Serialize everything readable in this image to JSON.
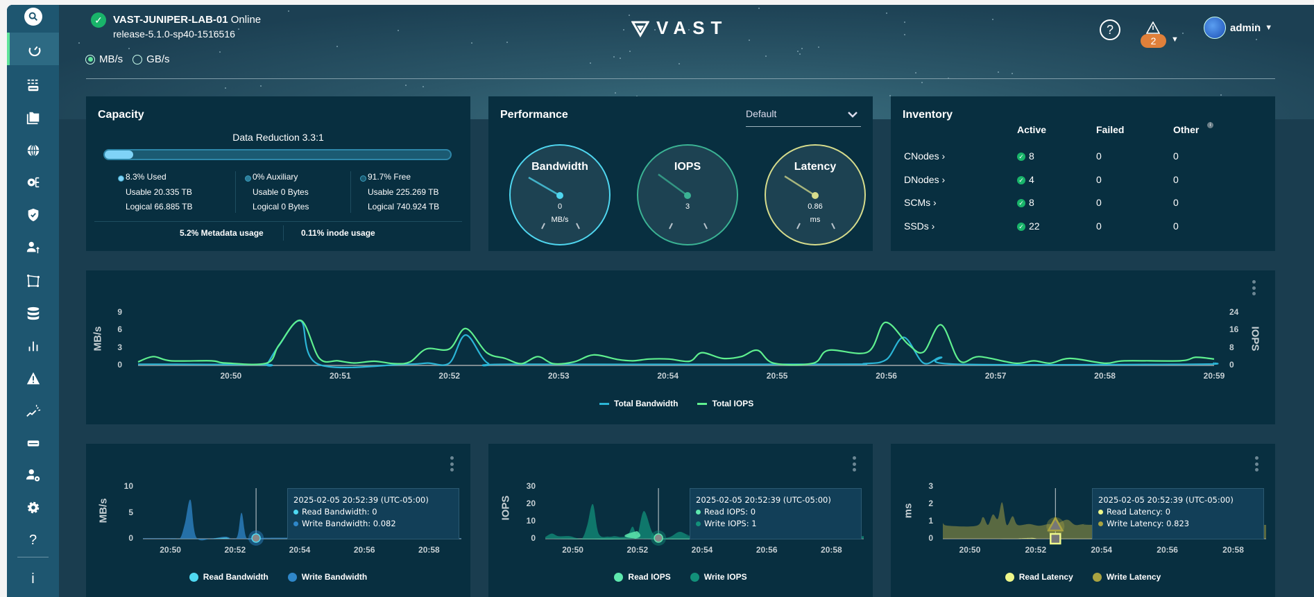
{
  "header": {
    "cluster_name": "VAST-JUNIPER-LAB-01",
    "cluster_status": "Online",
    "release": "release-5.1.0-sp40-1516516",
    "units": [
      {
        "label": "MB/s",
        "selected": true
      },
      {
        "label": "GB/s",
        "selected": false
      }
    ],
    "logo_text": "VAST",
    "alert_count": "2",
    "user": "admin"
  },
  "sidebar": {
    "items": [
      "search-icon",
      "dashboard-icon",
      "infrastructure-icon",
      "folders-icon",
      "network-icon",
      "settings-tree-icon",
      "security-icon",
      "user-access-icon",
      "topology-icon",
      "database-icon",
      "analytics-icon",
      "alerts-icon",
      "trends-icon",
      "hardware-icon",
      "user-settings-icon",
      "gear-icon",
      "help-icon",
      "info-icon"
    ],
    "active": "dashboard-icon",
    "help_glyph": "?",
    "info_glyph": "i"
  },
  "capacity": {
    "title": "Capacity",
    "data_reduction": "Data Reduction 3.3:1",
    "used_fraction": 0.083,
    "columns": [
      {
        "label": "8.3% Used",
        "usable": "Usable 20.335 TB",
        "logical": "Logical 66.885 TB",
        "color": "#7fd3f7"
      },
      {
        "label": "0% Auxiliary",
        "usable": "Usable 0 Bytes",
        "logical": "Logical 0 Bytes",
        "color": "#2b7c98"
      },
      {
        "label": "91.7% Free",
        "usable": "Usable 225.269 TB",
        "logical": "Logical 740.924 TB",
        "color": "#1a5a70"
      }
    ],
    "metadata": "5.2% Metadata usage",
    "inode": "0.11% inode usage"
  },
  "performance": {
    "title": "Performance",
    "dropdown": "Default",
    "gauges": [
      {
        "title": "Bandwidth",
        "value": "0",
        "unit": "MB/s",
        "color": "#4fd6ef",
        "fraction": 0.0
      },
      {
        "title": "IOPS",
        "value": "3",
        "unit": "",
        "color": "#3bb394",
        "fraction": 0.05
      },
      {
        "title": "Latency",
        "value": "0.86",
        "unit": "ms",
        "color": "#d6dc8c",
        "fraction": 0.02
      }
    ]
  },
  "inventory": {
    "title": "Inventory",
    "headers": [
      "Active",
      "Failed",
      "Other"
    ],
    "rows": [
      {
        "name": "CNodes ›",
        "active": "8",
        "failed": "0",
        "other": "0"
      },
      {
        "name": "DNodes ›",
        "active": "4",
        "failed": "0",
        "other": "0"
      },
      {
        "name": "SCMs ›",
        "active": "8",
        "failed": "0",
        "other": "0"
      },
      {
        "name": "SSDs ›",
        "active": "22",
        "failed": "0",
        "other": "0"
      }
    ]
  },
  "chart_data": [
    {
      "type": "line",
      "x_unit": "minutes past 20:00",
      "xlim": [
        49.15,
        59
      ],
      "ylabel": "MB/s",
      "ylabel_right": "IOPS",
      "ylim": [
        0,
        9
      ],
      "ylim_right": [
        0,
        24
      ],
      "yticks": [
        "0",
        "3",
        "6",
        "9"
      ],
      "yticks_right": [
        "0",
        "8",
        "16",
        "24"
      ],
      "xticks": [
        "20:50",
        "20:51",
        "20:52",
        "20:53",
        "20:54",
        "20:55",
        "20:56",
        "20:57",
        "20:58",
        "20:59"
      ],
      "legend": "bottom",
      "series": [
        {
          "name": "Total Bandwidth",
          "axis": "left",
          "color": "#2bb5d6",
          "points": [
            [
              49.15,
              0.2
            ],
            [
              49.3,
              0.2
            ],
            [
              50.3,
              0.15
            ],
            [
              50.33,
              0.2
            ],
            [
              50.44,
              3.4
            ],
            [
              50.64,
              7.6
            ],
            [
              50.8,
              0.2
            ],
            [
              51.6,
              0.2
            ],
            [
              51.8,
              0.4
            ],
            [
              52.0,
              0.4
            ],
            [
              52.15,
              5.2
            ],
            [
              52.35,
              0.4
            ],
            [
              52.6,
              0.2
            ],
            [
              55.5,
              0.2
            ],
            [
              55.8,
              0.3
            ],
            [
              56.0,
              1.0
            ],
            [
              56.16,
              4.8
            ],
            [
              56.34,
              0.4
            ],
            [
              56.5,
              1.4
            ],
            [
              56.65,
              0.2
            ],
            [
              58.8,
              0.2
            ],
            [
              59.0,
              0.4
            ]
          ]
        },
        {
          "name": "Total IOPS",
          "axis": "right",
          "color": "#5ff08f",
          "points": [
            [
              49.15,
              1.6
            ],
            [
              49.29,
              4.0
            ],
            [
              49.45,
              2.1
            ],
            [
              49.82,
              2.1
            ],
            [
              49.95,
              1.1
            ],
            [
              50.33,
              1.1
            ],
            [
              50.44,
              9.3
            ],
            [
              50.64,
              20.5
            ],
            [
              50.81,
              3.2
            ],
            [
              50.98,
              2.1
            ],
            [
              51.13,
              1.1
            ],
            [
              51.31,
              1.9
            ],
            [
              51.5,
              0.8
            ],
            [
              51.64,
              1.6
            ],
            [
              51.79,
              7.5
            ],
            [
              52.0,
              7.5
            ],
            [
              52.15,
              16.8
            ],
            [
              52.34,
              5.9
            ],
            [
              52.51,
              3.2
            ],
            [
              52.66,
              0.8
            ],
            [
              52.81,
              4.0
            ],
            [
              52.95,
              0.8
            ],
            [
              53.14,
              1.6
            ],
            [
              53.32,
              4.8
            ],
            [
              53.54,
              2.7
            ],
            [
              53.68,
              2.1
            ],
            [
              53.83,
              2.9
            ],
            [
              54.01,
              2.9
            ],
            [
              54.2,
              1.9
            ],
            [
              54.31,
              5.8
            ],
            [
              54.5,
              3.2
            ],
            [
              54.67,
              4.0
            ],
            [
              54.82,
              6.9
            ],
            [
              54.97,
              1.0
            ],
            [
              55.33,
              1.0
            ],
            [
              55.47,
              6.9
            ],
            [
              55.83,
              6.1
            ],
            [
              55.99,
              19.6
            ],
            [
              56.2,
              9.6
            ],
            [
              56.34,
              6.1
            ],
            [
              56.5,
              18.5
            ],
            [
              56.67,
              2.1
            ],
            [
              56.85,
              4.0
            ],
            [
              57.18,
              1.0
            ],
            [
              57.35,
              2.1
            ],
            [
              57.5,
              1.0
            ],
            [
              57.68,
              3.2
            ],
            [
              58.0,
              1.0
            ],
            [
              58.18,
              2.1
            ],
            [
              58.69,
              2.1
            ],
            [
              58.83,
              3.7
            ],
            [
              59.0,
              2.9
            ]
          ]
        }
      ]
    },
    {
      "type": "area",
      "x_unit": "minutes past 20:00",
      "xlim": [
        49.15,
        59
      ],
      "ylabel": "MB/s",
      "ylim": [
        0,
        10
      ],
      "yticks": [
        "0",
        "5",
        "10"
      ],
      "xticks": [
        "20:50",
        "20:52",
        "20:54",
        "20:56",
        "20:58"
      ],
      "legend": "bottom",
      "tooltip": {
        "title": "2025-02-05 20:52:39 (UTC-05:00)",
        "lines": [
          "Read Bandwidth: 0",
          "Write Bandwidth: 0.082"
        ],
        "x": 52.65
      },
      "series": [
        {
          "name": "Read Bandwidth",
          "color": "#4fd9f2",
          "points": [
            [
              49.15,
              0
            ],
            [
              51.6,
              0
            ],
            [
              51.75,
              0.2
            ],
            [
              51.9,
              0
            ],
            [
              59,
              0
            ]
          ]
        },
        {
          "name": "Write Bandwidth",
          "color": "#2f87c9",
          "points": [
            [
              49.15,
              0.1
            ],
            [
              50.1,
              0.1
            ],
            [
              50.3,
              0.1
            ],
            [
              50.45,
              3
            ],
            [
              50.62,
              7.5
            ],
            [
              50.8,
              0.3
            ],
            [
              51.3,
              0.1
            ],
            [
              51.7,
              0.4
            ],
            [
              52.05,
              0.2
            ],
            [
              52.2,
              5.0
            ],
            [
              52.35,
              0.2
            ],
            [
              52.65,
              0.08
            ],
            [
              53.5,
              0.2
            ],
            [
              59,
              0.1
            ]
          ]
        }
      ]
    },
    {
      "type": "area",
      "x_unit": "minutes past 20:00",
      "xlim": [
        49.15,
        59
      ],
      "ylabel": "IOPS",
      "ylim": [
        0,
        30
      ],
      "yticks": [
        "0",
        "10",
        "20",
        "30"
      ],
      "xticks": [
        "20:50",
        "20:52",
        "20:54",
        "20:56",
        "20:58"
      ],
      "legend": "bottom",
      "tooltip": {
        "title": "2025-02-05 20:52:39 (UTC-05:00)",
        "lines": [
          "Read IOPS: 0",
          "Write IOPS: 1"
        ],
        "x": 52.65
      },
      "series": [
        {
          "name": "Read IOPS",
          "color": "#5ee8ae",
          "points": [
            [
              49.15,
              0
            ],
            [
              51.85,
              0
            ],
            [
              52.0,
              4.5
            ],
            [
              52.15,
              0
            ],
            [
              59,
              0
            ]
          ]
        },
        {
          "name": "Write IOPS",
          "color": "#12907a",
          "points": [
            [
              49.15,
              1
            ],
            [
              49.35,
              3
            ],
            [
              49.55,
              1.5
            ],
            [
              49.9,
              1.5
            ],
            [
              50.1,
              0.5
            ],
            [
              50.3,
              0.5
            ],
            [
              50.45,
              8
            ],
            [
              50.62,
              20
            ],
            [
              50.8,
              3
            ],
            [
              51.1,
              1.2
            ],
            [
              51.3,
              1.5
            ],
            [
              51.5,
              1
            ],
            [
              51.7,
              2
            ],
            [
              51.85,
              7
            ],
            [
              52.0,
              2.5
            ],
            [
              52.2,
              16
            ],
            [
              52.45,
              4
            ],
            [
              52.65,
              0.5
            ],
            [
              53.0,
              1
            ],
            [
              53.3,
              4
            ],
            [
              53.6,
              2
            ],
            [
              54,
              1.5
            ],
            [
              59,
              1.5
            ]
          ]
        }
      ]
    },
    {
      "type": "area",
      "x_unit": "minutes past 20:00",
      "xlim": [
        49.18,
        59
      ],
      "ylabel": "ms",
      "ylim": [
        0,
        3
      ],
      "yticks": [
        "0",
        "1",
        "2",
        "3"
      ],
      "xticks": [
        "20:50",
        "20:52",
        "20:54",
        "20:56",
        "20:58"
      ],
      "legend": "bottom",
      "tooltip": {
        "title": "2025-02-05 20:52:39 (UTC-05:00)",
        "lines": [
          "Read Latency: 0",
          "Write Latency: 0.823"
        ],
        "x": 52.6
      },
      "series": [
        {
          "name": "Read Latency",
          "color": "#eef78a",
          "points": [
            [
              49.18,
              0
            ],
            [
              51.8,
              0
            ],
            [
              51.9,
              0.05
            ],
            [
              52.0,
              0
            ],
            [
              59,
              0
            ]
          ]
        },
        {
          "name": "Write Latency",
          "color": "#a9a341",
          "points": [
            [
              49.18,
              0.9
            ],
            [
              49.35,
              0.75
            ],
            [
              50.2,
              0.75
            ],
            [
              50.4,
              1.25
            ],
            [
              50.55,
              0.8
            ],
            [
              50.7,
              1.4
            ],
            [
              50.85,
              1.15
            ],
            [
              50.98,
              2.1
            ],
            [
              51.12,
              0.8
            ],
            [
              51.3,
              1.3
            ],
            [
              51.45,
              0.8
            ],
            [
              51.8,
              0.85
            ],
            [
              52.1,
              0.75
            ],
            [
              52.4,
              0.85
            ],
            [
              52.6,
              0.82
            ],
            [
              52.95,
              1.1
            ],
            [
              53.2,
              0.8
            ],
            [
              53.5,
              0.85
            ],
            [
              54,
              0.8
            ],
            [
              59,
              0.8
            ]
          ]
        }
      ]
    }
  ]
}
